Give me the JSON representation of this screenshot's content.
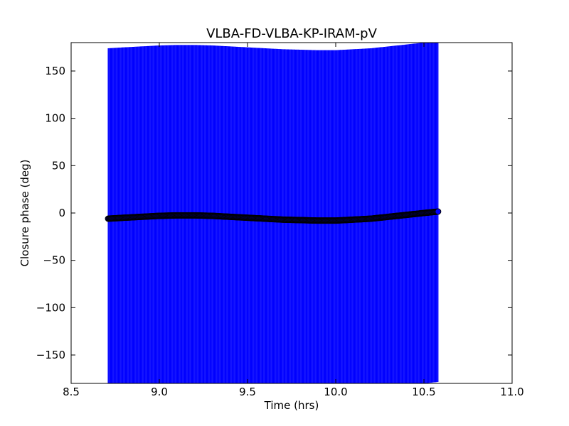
{
  "chart_data": {
    "type": "scatter",
    "title": "VLBA-FD-VLBA-KP-IRAM-pV",
    "xlabel": "Time (hrs)",
    "ylabel": "Closure phase (deg)",
    "xlim": [
      8.5,
      11.0
    ],
    "ylim": [
      -180,
      180
    ],
    "xticks": [
      8.5,
      9.0,
      9.5,
      10.0,
      10.5,
      11.0
    ],
    "xtick_labels": [
      "8.5",
      "9.0",
      "9.5",
      "10.0",
      "10.5",
      "11.0"
    ],
    "yticks": [
      -150,
      -100,
      -50,
      0,
      50,
      100,
      150
    ],
    "ytick_labels": [
      "−150",
      "−100",
      "−50",
      "0",
      "50",
      "100",
      "150"
    ],
    "grid": false,
    "legend": "none",
    "errorbar_color": "#0000ff",
    "marker_color": "#0000ff",
    "marker_edge_color": "#000000",
    "errorbar_span_deg": 180,
    "time_range": [
      8.71,
      10.58
    ],
    "series": [
      {
        "x": [
          8.71,
          8.8,
          8.9,
          9.0,
          9.1,
          9.2,
          9.3,
          9.4,
          9.5,
          9.6,
          9.7,
          9.8,
          9.9,
          9.95,
          10.0,
          10.1,
          10.2,
          10.3,
          10.4,
          10.5,
          10.58
        ],
        "y": [
          -6,
          -5,
          -4,
          -3,
          -2.5,
          -2.5,
          -3,
          -4,
          -5,
          -6,
          -7,
          -7.5,
          -8,
          -8,
          -8,
          -7,
          -6,
          -4,
          -2,
          0,
          1.5
        ]
      }
    ]
  }
}
